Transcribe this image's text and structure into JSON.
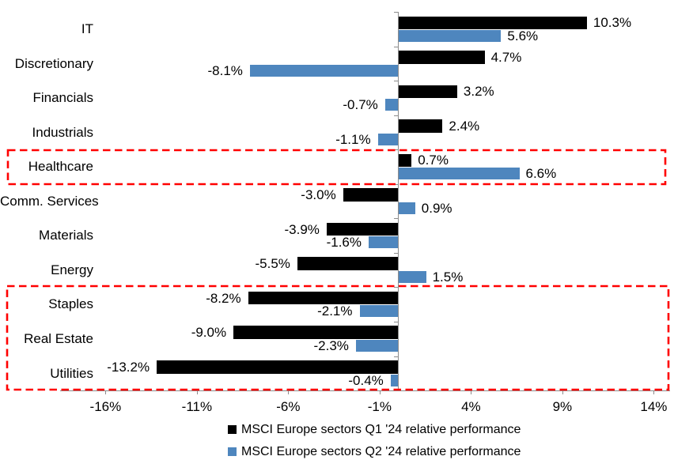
{
  "chart_data": {
    "type": "bar",
    "orientation": "horizontal",
    "title": "",
    "xlabel": "",
    "ylabel": "",
    "categories": [
      "IT",
      "Discretionary",
      "Financials",
      "Industrials",
      "Healthcare",
      "Comm. Services",
      "Materials",
      "Energy",
      "Staples",
      "Real Estate",
      "Utilities"
    ],
    "series": [
      {
        "name": "MSCI Europe sectors Q1 '24 relative performance",
        "color": "#000000",
        "values": [
          10.3,
          4.7,
          3.2,
          2.4,
          0.7,
          -3.0,
          -3.9,
          -5.5,
          -8.2,
          -9.0,
          -13.2
        ],
        "labels": [
          "10.3%",
          "4.7%",
          "3.2%",
          "2.4%",
          "0.7%",
          "-3.0%",
          "-3.9%",
          "-5.5%",
          "-8.2%",
          "-9.0%",
          "-13.2%"
        ]
      },
      {
        "name": "MSCI Europe sectors Q2 '24 relative performance",
        "color": "#4E86BE",
        "values": [
          5.6,
          -8.1,
          -0.7,
          -1.1,
          6.6,
          0.9,
          -1.6,
          1.5,
          -2.1,
          -2.3,
          -0.4
        ],
        "labels": [
          "5.6%",
          "-8.1%",
          "-0.7%",
          "-1.1%",
          "6.6%",
          "0.9%",
          "-1.6%",
          "1.5%",
          "-2.1%",
          "-2.3%",
          "-0.4%"
        ]
      }
    ],
    "x_ticks": [
      "-16%",
      "-11%",
      "-6%",
      "-1%",
      "4%",
      "9%",
      "14%"
    ],
    "x_tick_values": [
      -16,
      -11,
      -6,
      -1,
      4,
      9,
      14
    ],
    "xlim": [
      -18.5,
      15
    ],
    "grid": false,
    "legend_position": "bottom",
    "axis_color": "#8c8c8c",
    "highlight_color": "#ff0000",
    "highlights": [
      {
        "name": "healthcare",
        "rows": [
          "Healthcare"
        ]
      },
      {
        "name": "defensives",
        "rows": [
          "Staples",
          "Real Estate",
          "Utilities"
        ]
      }
    ]
  }
}
